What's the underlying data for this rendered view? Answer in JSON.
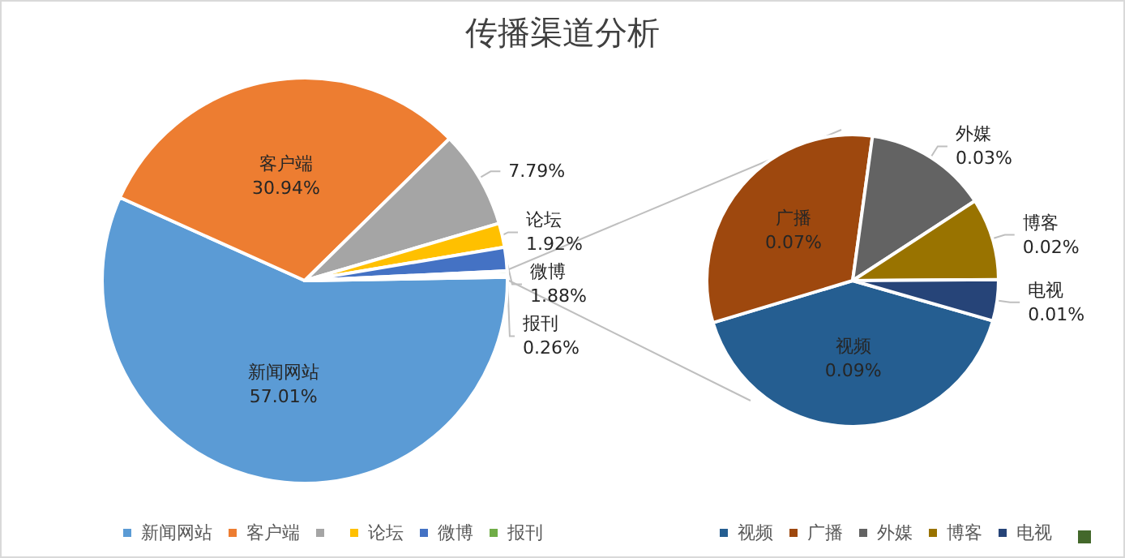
{
  "chart_data": [
    {
      "type": "pie",
      "title": "传播渠道分析",
      "categories": [
        "新闻网站",
        "客户端",
        null,
        "论坛",
        "微博",
        "报刊",
        null
      ],
      "values": [
        57.01,
        30.94,
        7.79,
        1.92,
        1.88,
        0.26,
        0.22
      ],
      "value_labels": [
        "57.01%",
        "30.94%",
        "7.79%",
        "1.92%",
        "1.88%",
        "0.26%",
        null
      ],
      "colors": [
        "#5b9bd5",
        "#ed7d31",
        "#a5a5a5",
        "#ffc000",
        "#4472c4",
        "#70ad47",
        "#43682b"
      ],
      "legend": "bottom"
    },
    {
      "type": "pie",
      "categories": [
        "视频",
        "广播",
        "外媒",
        "博客",
        "电视"
      ],
      "values": [
        0.09,
        0.07,
        0.03,
        0.02,
        0.01
      ],
      "value_labels": [
        "0.09%",
        "0.07%",
        "0.03%",
        "0.02%",
        "0.01%"
      ],
      "colors": [
        "#255e91",
        "#9e480e",
        "#636363",
        "#997300",
        "#264478"
      ],
      "legend": "bottom"
    }
  ]
}
